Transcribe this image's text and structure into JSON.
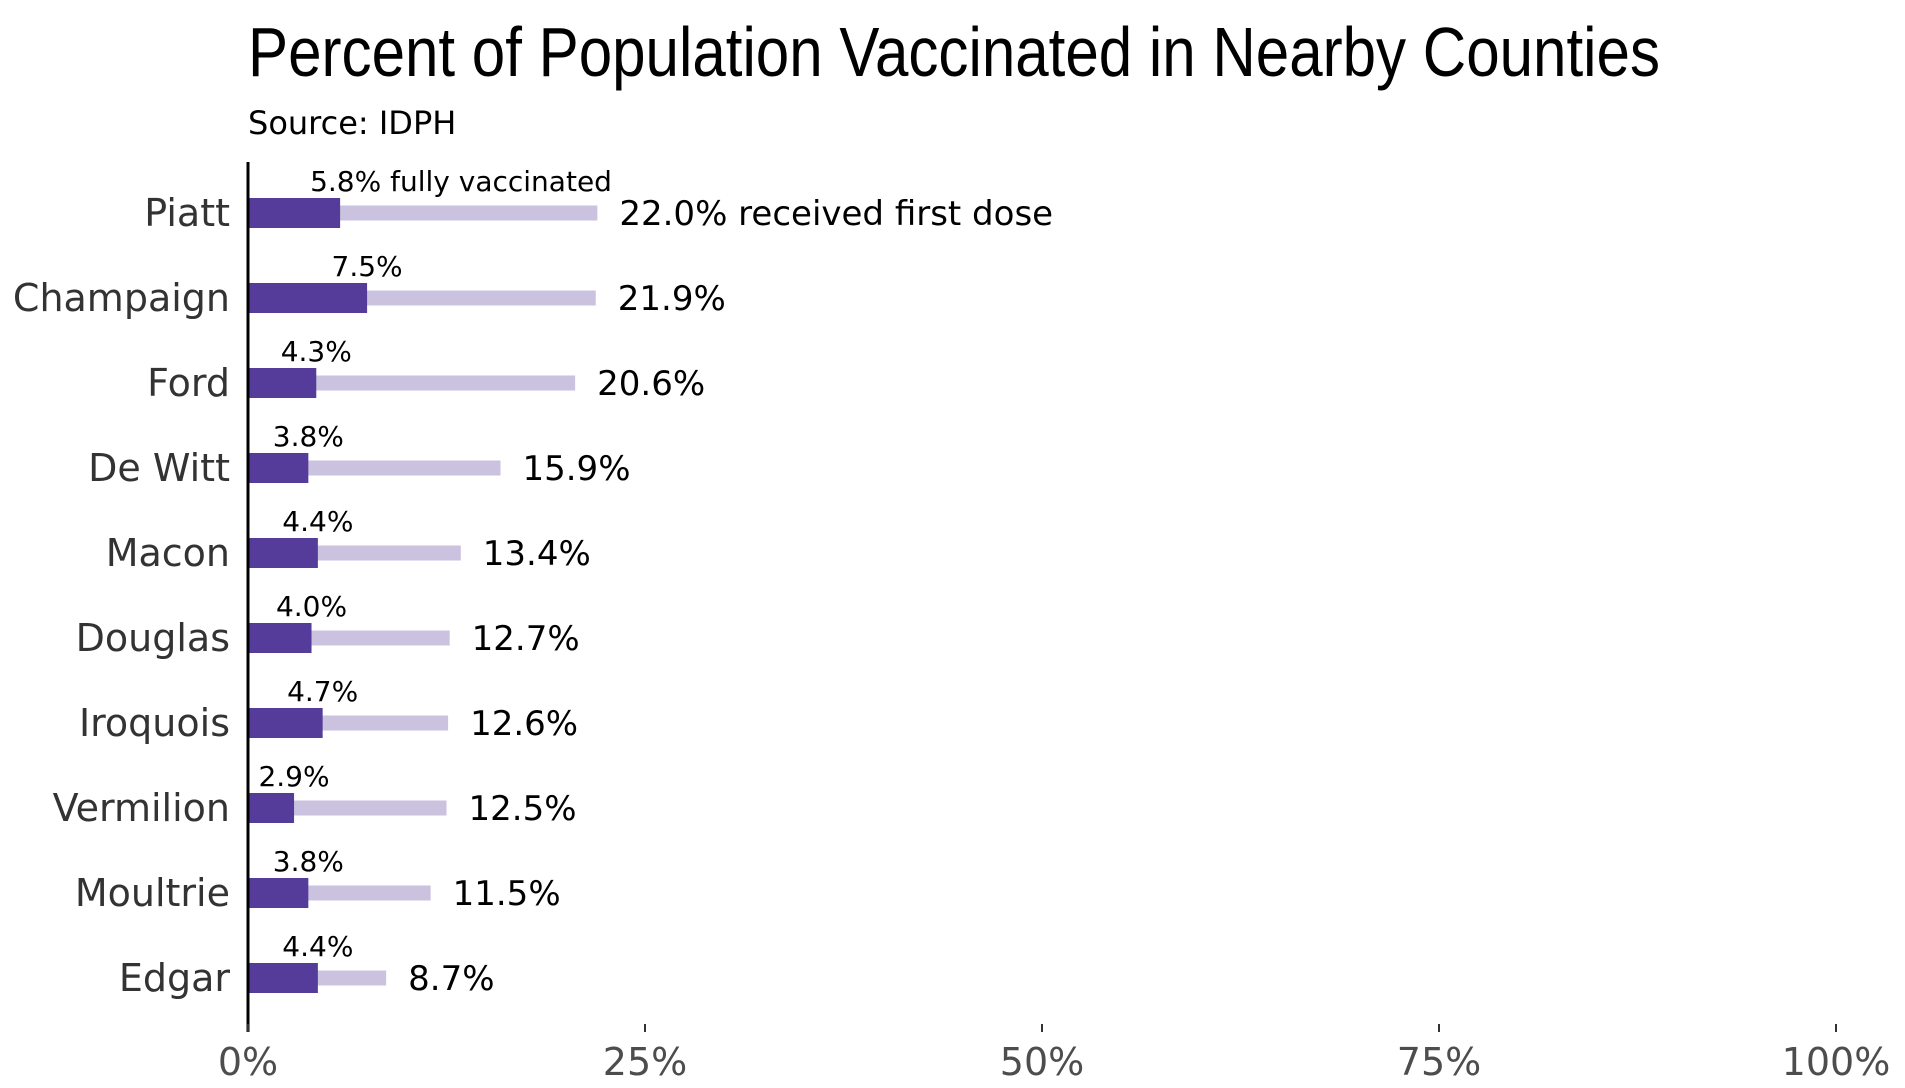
{
  "chart_data": {
    "type": "bar",
    "orientation": "horizontal",
    "title": "Percent of Population Vaccinated in Nearby Counties",
    "subtitle": "Source: IDPH",
    "categories": [
      "Piatt",
      "Champaign",
      "Ford",
      "De Witt",
      "Macon",
      "Douglas",
      "Iroquois",
      "Vermilion",
      "Moultrie",
      "Edgar"
    ],
    "series": [
      {
        "key": "first_dose",
        "values": [
          22.0,
          21.9,
          20.6,
          15.9,
          13.4,
          12.7,
          12.6,
          12.5,
          11.5,
          8.7
        ],
        "labels": [
          "22.0% received first dose",
          "21.9%",
          "20.6%",
          "15.9%",
          "13.4%",
          "12.7%",
          "12.6%",
          "12.5%",
          "11.5%",
          "8.7%"
        ],
        "color": "#cbc2e0"
      },
      {
        "key": "fully_vaccinated",
        "values": [
          5.8,
          7.5,
          4.3,
          3.8,
          4.4,
          4.0,
          4.7,
          2.9,
          3.8,
          4.4
        ],
        "labels": [
          "5.8% fully vaccinated",
          "7.5%",
          "4.3%",
          "3.8%",
          "4.4%",
          "4.0%",
          "4.7%",
          "2.9%",
          "3.8%",
          "4.4%"
        ],
        "color": "#553c9a"
      }
    ],
    "xlim": [
      0,
      100
    ],
    "x_ticks": [
      0,
      25,
      50,
      75,
      100
    ],
    "x_tick_labels": [
      "0%",
      "25%",
      "50%",
      "75%",
      "100%"
    ],
    "grid": false,
    "legend": "none",
    "axis_color": "#000000"
  }
}
